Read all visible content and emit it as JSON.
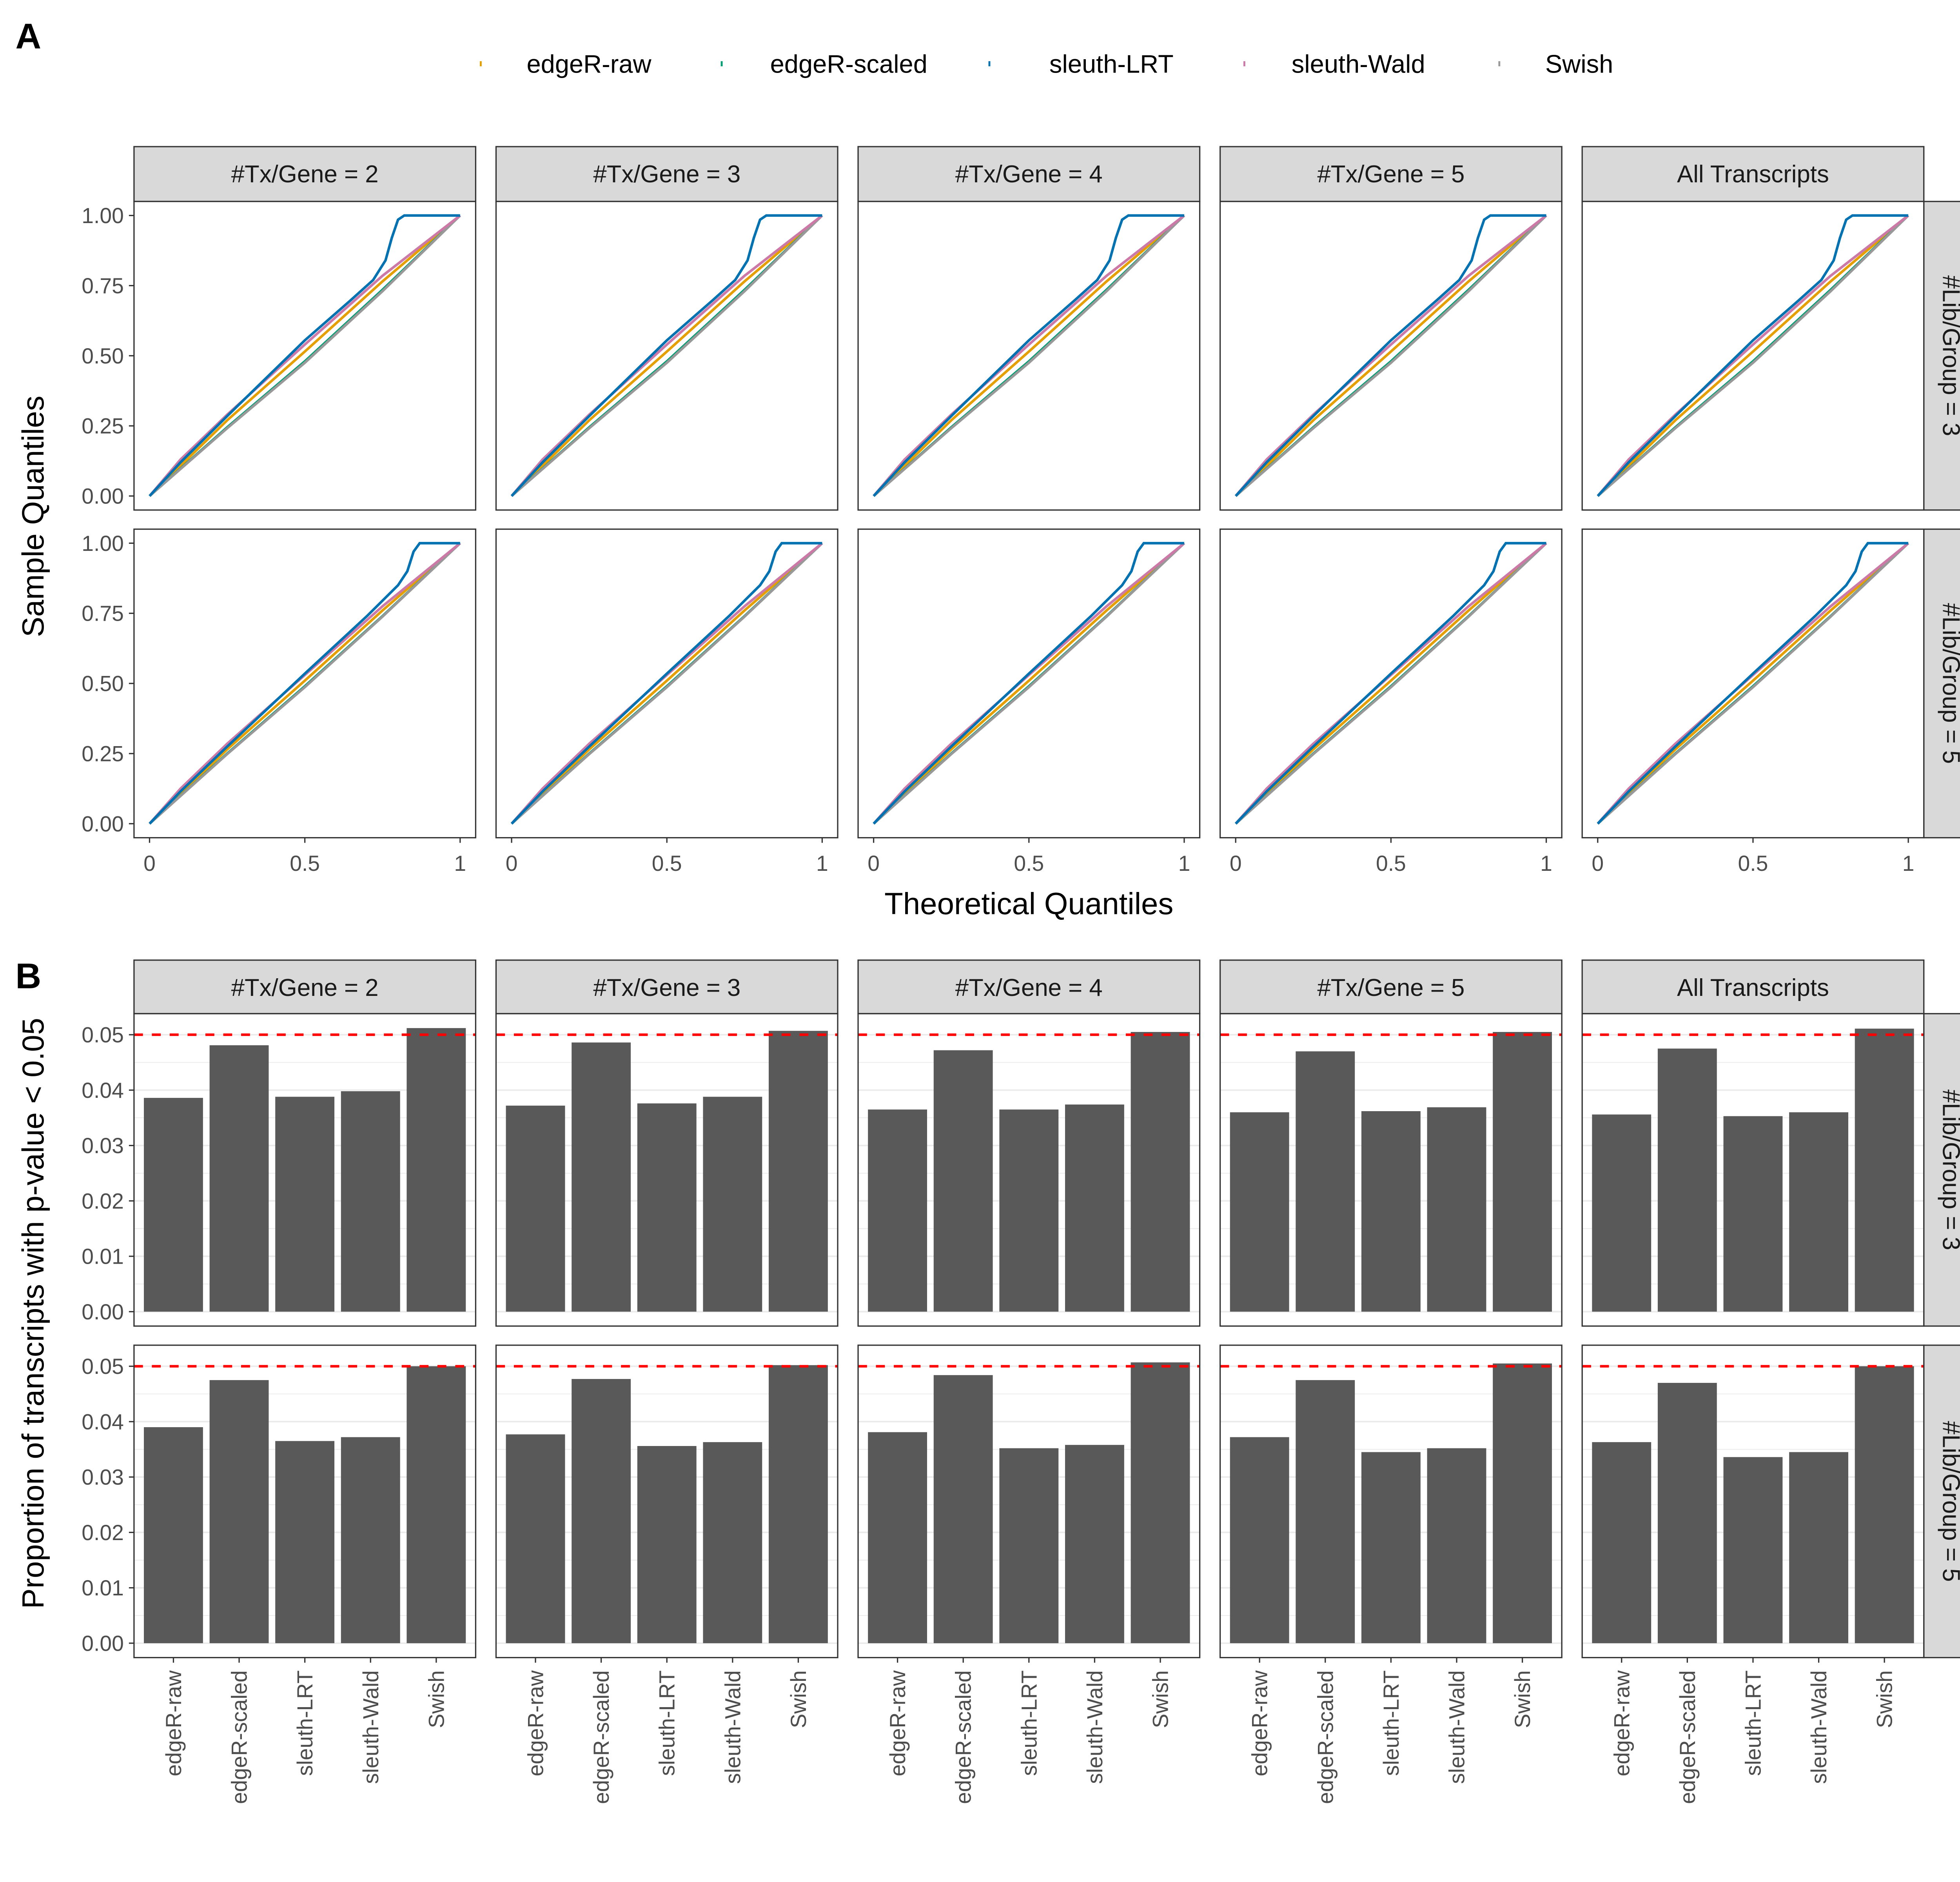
{
  "panel_labels": {
    "a": "A",
    "b": "B"
  },
  "legend": {
    "items": [
      {
        "label": "edgeR-raw",
        "color": "#E69F00"
      },
      {
        "label": "edgeR-scaled",
        "color": "#009E73"
      },
      {
        "label": "sleuth-LRT",
        "color": "#0072B2"
      },
      {
        "label": "sleuth-Wald",
        "color": "#CC79A7"
      },
      {
        "label": "Swish",
        "color": "#999999"
      }
    ]
  },
  "chart_data": [
    {
      "type": "line",
      "xlabel": "Theoretical Quantiles",
      "ylabel": "Sample Quantiles",
      "xlim": [
        0,
        1
      ],
      "ylim": [
        0,
        1
      ],
      "x_ticks": [
        "0",
        "0.5",
        "1"
      ],
      "y_ticks": [
        "0.00",
        "0.25",
        "0.50",
        "0.75",
        "1.00"
      ],
      "column_facets": [
        "#Tx/Gene = 2",
        "#Tx/Gene = 3",
        "#Tx/Gene = 4",
        "#Tx/Gene = 5",
        "All Transcripts"
      ],
      "row_facets": [
        "#Lib/Group = 3",
        "#Lib/Group = 5"
      ],
      "grid": false,
      "series_by_row": [
        [
          {
            "name": "edgeR-raw",
            "color": "#E69F00",
            "points": [
              [
                0,
                0
              ],
              [
                0.25,
                0.27
              ],
              [
                0.5,
                0.515
              ],
              [
                0.75,
                0.765
              ],
              [
                1,
                1
              ]
            ]
          },
          {
            "name": "edgeR-scaled",
            "color": "#009E73",
            "points": [
              [
                0,
                0
              ],
              [
                0.25,
                0.245
              ],
              [
                0.5,
                0.48
              ],
              [
                0.75,
                0.735
              ],
              [
                1,
                1
              ]
            ]
          },
          {
            "name": "Swish",
            "color": "#999999",
            "points": [
              [
                0,
                0
              ],
              [
                0.25,
                0.242
              ],
              [
                0.5,
                0.475
              ],
              [
                0.75,
                0.73
              ],
              [
                1,
                1
              ]
            ]
          },
          {
            "name": "sleuth-Wald",
            "color": "#CC79A7",
            "points": [
              [
                0,
                0
              ],
              [
                0.1,
                0.13
              ],
              [
                0.25,
                0.29
              ],
              [
                0.5,
                0.54
              ],
              [
                0.75,
                0.785
              ],
              [
                1,
                1
              ]
            ]
          },
          {
            "name": "sleuth-LRT",
            "color": "#0072B2",
            "points": [
              [
                0,
                0
              ],
              [
                0.1,
                0.12
              ],
              [
                0.25,
                0.285
              ],
              [
                0.5,
                0.555
              ],
              [
                0.65,
                0.7
              ],
              [
                0.72,
                0.77
              ],
              [
                0.76,
                0.84
              ],
              [
                0.78,
                0.92
              ],
              [
                0.8,
                0.985
              ],
              [
                0.82,
                1
              ],
              [
                1,
                1
              ]
            ]
          }
        ],
        [
          {
            "name": "edgeR-raw",
            "color": "#E69F00",
            "points": [
              [
                0,
                0
              ],
              [
                0.25,
                0.265
              ],
              [
                0.5,
                0.51
              ],
              [
                0.75,
                0.76
              ],
              [
                1,
                1
              ]
            ]
          },
          {
            "name": "edgeR-scaled",
            "color": "#009E73",
            "points": [
              [
                0,
                0
              ],
              [
                0.25,
                0.25
              ],
              [
                0.5,
                0.49
              ],
              [
                0.75,
                0.74
              ],
              [
                1,
                1
              ]
            ]
          },
          {
            "name": "Swish",
            "color": "#999999",
            "points": [
              [
                0,
                0
              ],
              [
                0.25,
                0.248
              ],
              [
                0.5,
                0.487
              ],
              [
                0.75,
                0.738
              ],
              [
                1,
                1
              ]
            ]
          },
          {
            "name": "sleuth-Wald",
            "color": "#CC79A7",
            "points": [
              [
                0,
                0
              ],
              [
                0.1,
                0.125
              ],
              [
                0.25,
                0.285
              ],
              [
                0.5,
                0.53
              ],
              [
                0.75,
                0.775
              ],
              [
                1,
                1
              ]
            ]
          },
          {
            "name": "sleuth-LRT",
            "color": "#0072B2",
            "points": [
              [
                0,
                0
              ],
              [
                0.1,
                0.115
              ],
              [
                0.25,
                0.275
              ],
              [
                0.5,
                0.535
              ],
              [
                0.7,
                0.74
              ],
              [
                0.8,
                0.85
              ],
              [
                0.83,
                0.9
              ],
              [
                0.85,
                0.97
              ],
              [
                0.87,
                1
              ],
              [
                1,
                1
              ]
            ]
          }
        ]
      ]
    },
    {
      "type": "bar",
      "ylabel": "Proportion of transcripts with p-value < 0.05",
      "categories": [
        "edgeR-raw",
        "edgeR-scaled",
        "sleuth-LRT",
        "sleuth-Wald",
        "Swish"
      ],
      "y_ticks": [
        "0.00",
        "0.01",
        "0.02",
        "0.03",
        "0.04",
        "0.05"
      ],
      "ylim": [
        0,
        0.05
      ],
      "reference_line": {
        "value": 0.05,
        "color": "#FF0000",
        "style": "dashed"
      },
      "bar_color": "#595959",
      "column_facets": [
        "#Tx/Gene = 2",
        "#Tx/Gene = 3",
        "#Tx/Gene = 4",
        "#Tx/Gene = 5",
        "All Transcripts"
      ],
      "row_facets": [
        "#Lib/Group = 3",
        "#Lib/Group = 5"
      ],
      "values": [
        [
          [
            0.0386,
            0.0481,
            0.0388,
            0.0398,
            0.0512
          ],
          [
            0.0372,
            0.0486,
            0.0376,
            0.0388,
            0.0507
          ],
          [
            0.0365,
            0.0472,
            0.0365,
            0.0374,
            0.0505
          ],
          [
            0.036,
            0.047,
            0.0362,
            0.0369,
            0.0505
          ],
          [
            0.0356,
            0.0475,
            0.0353,
            0.036,
            0.0511
          ]
        ],
        [
          [
            0.039,
            0.0475,
            0.0365,
            0.0372,
            0.05
          ],
          [
            0.0377,
            0.0477,
            0.0356,
            0.0363,
            0.0502
          ],
          [
            0.0381,
            0.0484,
            0.0352,
            0.0358,
            0.0507
          ],
          [
            0.0372,
            0.0475,
            0.0345,
            0.0352,
            0.0505
          ],
          [
            0.0363,
            0.047,
            0.0336,
            0.0345,
            0.05
          ]
        ]
      ]
    }
  ]
}
